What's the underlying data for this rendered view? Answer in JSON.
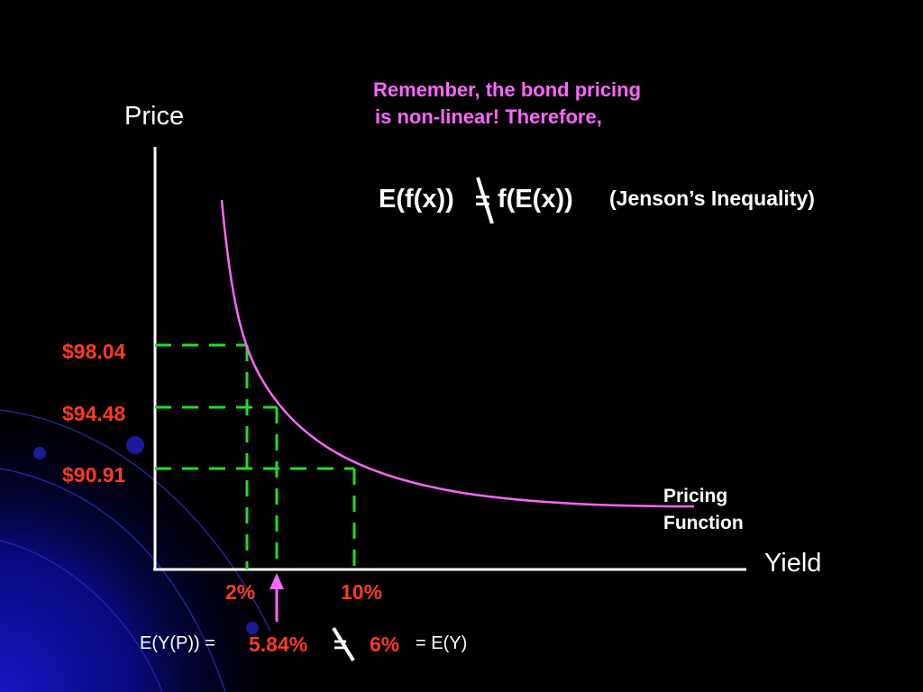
{
  "colors": {
    "background": "#000000",
    "axis": "#ffffff",
    "curve": "#ff66ff",
    "guides": "#22dd22",
    "highlight": "#ff3b1f",
    "note": "#ff66ff",
    "text": "#ffffff",
    "arrow": "#ff66ff"
  },
  "note": {
    "line1": "Remember, the bond pricing",
    "line2": "is non-linear! Therefore,"
  },
  "formula": {
    "left": "E(f(x))",
    "relation": "=",
    "right": "f(E(x))",
    "name": "(Jenson’s Inequality)"
  },
  "axes": {
    "y_label": "Price",
    "x_label": "Yield"
  },
  "price_labels": [
    "$98.04",
    "$94.48",
    "$90.91"
  ],
  "yield_labels": [
    "2%",
    "10%"
  ],
  "curve_label": {
    "line1": "Pricing",
    "line2": "Function"
  },
  "bottom_equation": {
    "left": "E(Y(P)) =",
    "value_left": "5.84%",
    "relation": "=",
    "value_right": "6%",
    "right": "= E(Y)"
  }
}
